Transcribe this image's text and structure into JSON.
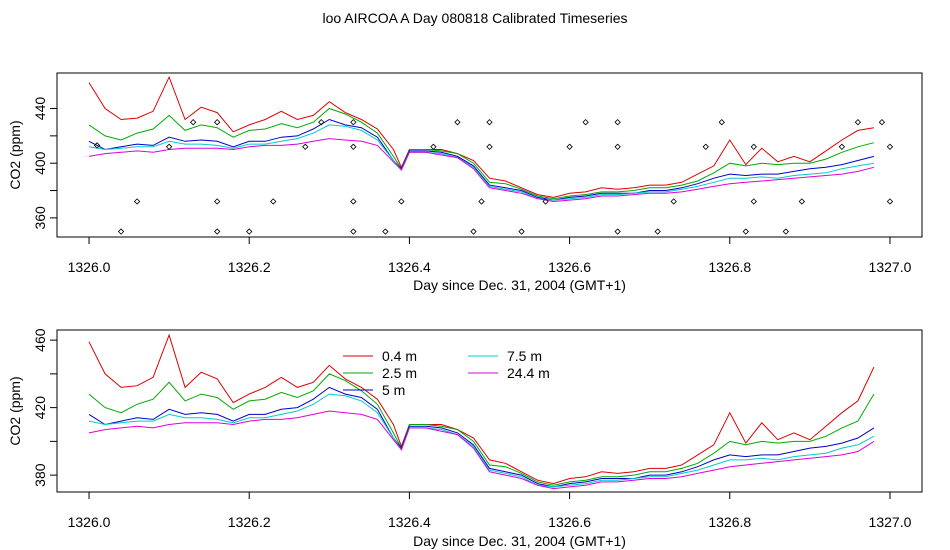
{
  "page_title": "loo AIRCOA A  Day 080818  Calibrated Timeseries",
  "colors": {
    "0.4 m": "#dd0000",
    "2.5 m": "#00aa00",
    "5 m": "#0000cc",
    "7.5 m": "#00cccc",
    "24.4 m": "#dd00dd",
    "points": "#000000"
  },
  "chart_data": [
    {
      "type": "line",
      "xlabel": "Day since Dec. 31, 2004 (GMT+1)",
      "ylabel": "CO2 (ppm)",
      "xlim": [
        1325.96,
        1327.04
      ],
      "ylim": [
        346,
        466
      ],
      "xticks": [
        1326.0,
        1326.2,
        1326.4,
        1326.6,
        1326.8,
        1327.0
      ],
      "xtick_labels": [
        "1326.0",
        "1326.2",
        "1326.4",
        "1326.6",
        "1326.8",
        "1327.0"
      ],
      "yticks": [
        360,
        400,
        440
      ],
      "ytick_labels": [
        "360",
        "400",
        "440"
      ],
      "extra_yticks": [
        380,
        420
      ],
      "x": [
        1326.0,
        1326.02,
        1326.04,
        1326.06,
        1326.08,
        1326.1,
        1326.12,
        1326.14,
        1326.16,
        1326.18,
        1326.2,
        1326.22,
        1326.24,
        1326.26,
        1326.28,
        1326.3,
        1326.32,
        1326.34,
        1326.36,
        1326.38,
        1326.39,
        1326.4,
        1326.42,
        1326.44,
        1326.46,
        1326.48,
        1326.5,
        1326.52,
        1326.54,
        1326.56,
        1326.58,
        1326.6,
        1326.62,
        1326.64,
        1326.66,
        1326.68,
        1326.7,
        1326.72,
        1326.74,
        1326.76,
        1326.78,
        1326.8,
        1326.82,
        1326.84,
        1326.86,
        1326.88,
        1326.9,
        1326.92,
        1326.94,
        1326.96,
        1326.98
      ],
      "series": [
        {
          "name": "0.4 m",
          "values": [
            459,
            440,
            432,
            433,
            438,
            463,
            432,
            441,
            437,
            423,
            428,
            432,
            438,
            432,
            435,
            445,
            437,
            432,
            425,
            410,
            397,
            410,
            410,
            410,
            407,
            402,
            389,
            387,
            382,
            377,
            375,
            378,
            379,
            382,
            381,
            382,
            384,
            384,
            386,
            392,
            398,
            417,
            399,
            411,
            401,
            405,
            401,
            409,
            417,
            424,
            426
          ]
        },
        {
          "name": "2.5 m",
          "values": [
            428,
            420,
            417,
            422,
            425,
            435,
            424,
            428,
            426,
            419,
            424,
            425,
            429,
            426,
            430,
            440,
            436,
            430,
            422,
            405,
            396,
            410,
            410,
            409,
            407,
            400,
            386,
            385,
            381,
            376,
            374,
            376,
            377,
            379,
            379,
            380,
            382,
            382,
            384,
            387,
            393,
            400,
            398,
            400,
            399,
            400,
            400,
            403,
            408,
            412,
            415
          ]
        },
        {
          "name": "5 m",
          "values": [
            416,
            410,
            412,
            414,
            413,
            419,
            416,
            417,
            416,
            412,
            416,
            416,
            419,
            420,
            425,
            432,
            428,
            426,
            419,
            402,
            396,
            409,
            409,
            408,
            405,
            398,
            384,
            382,
            380,
            375,
            373,
            375,
            376,
            378,
            378,
            378,
            380,
            380,
            382,
            385,
            389,
            392,
            391,
            392,
            392,
            394,
            396,
            397,
            399,
            402,
            405
          ]
        },
        {
          "name": "7.5 m",
          "values": [
            412,
            410,
            411,
            412,
            412,
            416,
            414,
            414,
            413,
            411,
            414,
            414,
            416,
            418,
            422,
            428,
            427,
            424,
            417,
            402,
            395,
            408,
            408,
            407,
            404,
            397,
            383,
            381,
            379,
            374,
            373,
            374,
            375,
            377,
            377,
            378,
            379,
            379,
            381,
            383,
            386,
            389,
            389,
            390,
            389,
            391,
            392,
            393,
            396,
            398,
            400
          ]
        },
        {
          "name": "24.4 m",
          "values": [
            405,
            407,
            408,
            409,
            408,
            410,
            411,
            411,
            411,
            410,
            412,
            413,
            413,
            414,
            416,
            418,
            417,
            416,
            413,
            401,
            395,
            408,
            408,
            406,
            404,
            396,
            382,
            380,
            378,
            374,
            372,
            373,
            374,
            376,
            376,
            377,
            378,
            378,
            379,
            381,
            383,
            385,
            386,
            387,
            388,
            389,
            390,
            391,
            392,
            394,
            397
          ]
        }
      ],
      "points": {
        "x": [
          1326.01,
          1326.04,
          1326.06,
          1326.1,
          1326.13,
          1326.16,
          1326.16,
          1326.16,
          1326.2,
          1326.23,
          1326.27,
          1326.29,
          1326.33,
          1326.33,
          1326.33,
          1326.33,
          1326.37,
          1326.39,
          1326.43,
          1326.46,
          1326.48,
          1326.49,
          1326.5,
          1326.5,
          1326.54,
          1326.57,
          1326.6,
          1326.62,
          1326.66,
          1326.66,
          1326.66,
          1326.71,
          1326.73,
          1326.77,
          1326.79,
          1326.82,
          1326.83,
          1326.83,
          1326.87,
          1326.89,
          1326.94,
          1326.96,
          1326.99,
          1327.0,
          1327.0
        ],
        "y": [
          413,
          350,
          372,
          412,
          430,
          372,
          350,
          430,
          350,
          372,
          412,
          430,
          412,
          372,
          350,
          430,
          350,
          372,
          412,
          430,
          350,
          372,
          412,
          430,
          350,
          372,
          412,
          430,
          350,
          412,
          430,
          350,
          372,
          412,
          430,
          350,
          372,
          412,
          350,
          372,
          412,
          430,
          430,
          412,
          372
        ]
      }
    },
    {
      "type": "line",
      "xlabel": "Day since Dec. 31, 2004 (GMT+1)",
      "ylabel": "CO2 (ppm)",
      "xlim": [
        1325.96,
        1327.04
      ],
      "ylim": [
        370,
        466
      ],
      "xticks": [
        1326.0,
        1326.2,
        1326.4,
        1326.6,
        1326.8,
        1327.0
      ],
      "xtick_labels": [
        "1326.0",
        "1326.2",
        "1326.4",
        "1326.6",
        "1326.8",
        "1327.0"
      ],
      "yticks": [
        380,
        420,
        460
      ],
      "ytick_labels": [
        "380",
        "420",
        "460"
      ],
      "extra_yticks": [
        400,
        440
      ],
      "legend": {
        "placement": "top-center",
        "entries": [
          "0.4 m",
          "2.5 m",
          "5 m",
          "7.5 m",
          "24.4 m"
        ]
      },
      "x": [
        1326.0,
        1326.02,
        1326.04,
        1326.06,
        1326.08,
        1326.1,
        1326.12,
        1326.14,
        1326.16,
        1326.18,
        1326.2,
        1326.22,
        1326.24,
        1326.26,
        1326.28,
        1326.3,
        1326.32,
        1326.34,
        1326.36,
        1326.38,
        1326.39,
        1326.4,
        1326.42,
        1326.44,
        1326.46,
        1326.48,
        1326.5,
        1326.52,
        1326.54,
        1326.56,
        1326.58,
        1326.6,
        1326.62,
        1326.64,
        1326.66,
        1326.68,
        1326.7,
        1326.72,
        1326.74,
        1326.76,
        1326.78,
        1326.8,
        1326.82,
        1326.84,
        1326.86,
        1326.88,
        1326.9,
        1326.92,
        1326.94,
        1326.96,
        1326.98
      ],
      "series": [
        {
          "name": "0.4 m",
          "values": [
            459,
            440,
            432,
            433,
            438,
            463,
            432,
            441,
            437,
            423,
            428,
            432,
            438,
            432,
            435,
            445,
            437,
            432,
            425,
            410,
            397,
            410,
            410,
            410,
            407,
            402,
            389,
            387,
            382,
            377,
            375,
            378,
            379,
            382,
            381,
            382,
            384,
            384,
            386,
            392,
            398,
            417,
            399,
            411,
            401,
            405,
            401,
            409,
            417,
            424,
            444
          ]
        },
        {
          "name": "2.5 m",
          "values": [
            428,
            420,
            417,
            422,
            425,
            435,
            424,
            428,
            426,
            419,
            424,
            425,
            429,
            426,
            430,
            440,
            436,
            430,
            422,
            405,
            396,
            410,
            410,
            409,
            407,
            400,
            386,
            385,
            381,
            376,
            374,
            376,
            377,
            379,
            379,
            380,
            382,
            382,
            384,
            387,
            393,
            400,
            398,
            400,
            399,
            400,
            400,
            403,
            408,
            412,
            428
          ]
        },
        {
          "name": "5 m",
          "values": [
            416,
            410,
            412,
            414,
            413,
            419,
            416,
            417,
            416,
            412,
            416,
            416,
            419,
            420,
            425,
            432,
            428,
            426,
            419,
            402,
            396,
            409,
            409,
            408,
            405,
            398,
            384,
            382,
            380,
            375,
            373,
            375,
            376,
            378,
            378,
            378,
            380,
            380,
            382,
            385,
            389,
            392,
            391,
            392,
            392,
            394,
            396,
            397,
            399,
            402,
            408
          ]
        },
        {
          "name": "7.5 m",
          "values": [
            412,
            410,
            411,
            412,
            412,
            416,
            414,
            414,
            413,
            411,
            414,
            414,
            416,
            418,
            422,
            428,
            427,
            424,
            417,
            402,
            395,
            408,
            408,
            407,
            404,
            397,
            383,
            381,
            379,
            374,
            373,
            374,
            375,
            377,
            377,
            378,
            379,
            379,
            381,
            383,
            386,
            389,
            389,
            390,
            389,
            391,
            392,
            393,
            396,
            398,
            403
          ]
        },
        {
          "name": "24.4 m",
          "values": [
            405,
            407,
            408,
            409,
            408,
            410,
            411,
            411,
            411,
            410,
            412,
            413,
            413,
            414,
            416,
            418,
            417,
            416,
            413,
            401,
            395,
            408,
            408,
            406,
            404,
            396,
            382,
            380,
            378,
            374,
            372,
            373,
            374,
            376,
            376,
            377,
            378,
            378,
            379,
            381,
            383,
            385,
            386,
            387,
            388,
            389,
            390,
            391,
            392,
            394,
            400
          ]
        }
      ]
    }
  ]
}
